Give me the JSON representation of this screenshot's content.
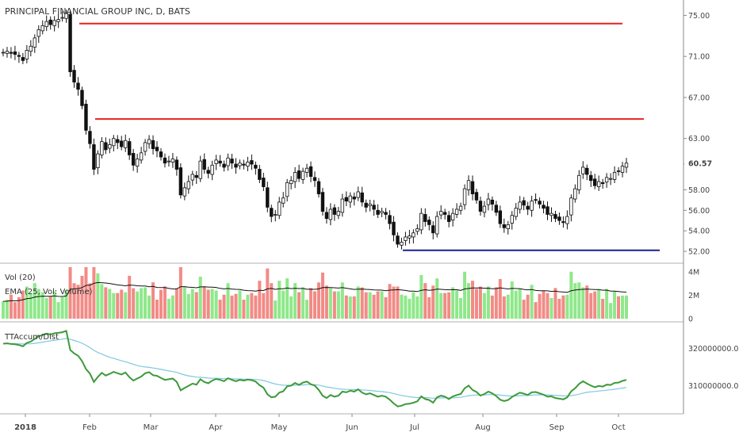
{
  "chart_data": {
    "type": "candlestick",
    "title": "PRINCIPAL FINANCIAL GROUP INC, D, BATS",
    "last_price_label": "60.57",
    "price_axis": {
      "ylim": [
        51,
        76.5
      ],
      "ticks": [
        "75.00",
        "71.00",
        "67.00",
        "63.00",
        "60.50",
        "58.00",
        "56.00",
        "54.00",
        "52.00"
      ]
    },
    "x_axis": {
      "ticks": [
        "2018",
        "Feb",
        "Mar",
        "Apr",
        "May",
        "Jun",
        "Jul",
        "Aug",
        "Sep",
        "Oct"
      ]
    },
    "horizontal_lines": [
      {
        "color": "#e8211c",
        "value": 74.2
      },
      {
        "color": "#e8211c",
        "value": 64.9
      },
      {
        "color": "#1a1f8f",
        "value": 52.1
      }
    ],
    "close_series": [
      71.4,
      71.5,
      71.3,
      71.2,
      71.0,
      70.6,
      71.6,
      72.0,
      72.8,
      73.6,
      74.0,
      74.4,
      74.1,
      74.5,
      74.6,
      74.8,
      75.2,
      69.5,
      68.5,
      67.8,
      66.2,
      63.8,
      62.5,
      60.0,
      61.5,
      62.7,
      61.9,
      62.4,
      63.0,
      62.6,
      62.2,
      62.8,
      61.4,
      60.4,
      61.0,
      61.6,
      62.6,
      62.9,
      62.0,
      61.8,
      61.2,
      60.6,
      60.8,
      61.0,
      60.0,
      57.5,
      58.2,
      58.8,
      59.5,
      59.2,
      60.8,
      60.0,
      59.6,
      60.4,
      60.9,
      60.6,
      60.2,
      61.1,
      60.6,
      60.2,
      60.6,
      60.4,
      60.7,
      60.5,
      60.1,
      59.0,
      58.3,
      56.3,
      55.4,
      55.6,
      56.8,
      57.2,
      58.7,
      58.9,
      59.7,
      59.1,
      59.8,
      60.1,
      59.3,
      58.9,
      57.6,
      55.9,
      55.2,
      56.1,
      55.6,
      55.9,
      57.1,
      56.9,
      57.4,
      57.1,
      57.8,
      56.8,
      56.3,
      56.6,
      56.1,
      55.6,
      55.9,
      55.6,
      54.7,
      53.6,
      52.7,
      52.9,
      53.4,
      53.5,
      53.8,
      54.2,
      55.7,
      54.9,
      54.6,
      53.8,
      55.4,
      55.9,
      55.6,
      54.9,
      55.7,
      56.1,
      56.4,
      58.1,
      58.9,
      57.6,
      57.0,
      55.9,
      56.4,
      57.1,
      56.6,
      55.8,
      54.7,
      54.3,
      54.6,
      55.5,
      56.2,
      56.8,
      56.5,
      56.1,
      56.9,
      57.0,
      56.6,
      56.2,
      55.6,
      55.7,
      55.2,
      55.0,
      54.8,
      55.4,
      57.2,
      58.1,
      59.4,
      60.2,
      59.5,
      58.9,
      58.4,
      58.8,
      58.6,
      59.2,
      59.1,
      59.7,
      59.8,
      60.3,
      60.6
    ],
    "volume_panel": {
      "labels": [
        "Vol (20)",
        "EMA (25, Vol: Volume)"
      ],
      "ticks": [
        "4M",
        "2M",
        "0"
      ]
    },
    "indicator_panel": {
      "label": "TTAccum/Dist",
      "ticks": [
        "320000000.0000",
        "310000000.0000"
      ]
    }
  }
}
